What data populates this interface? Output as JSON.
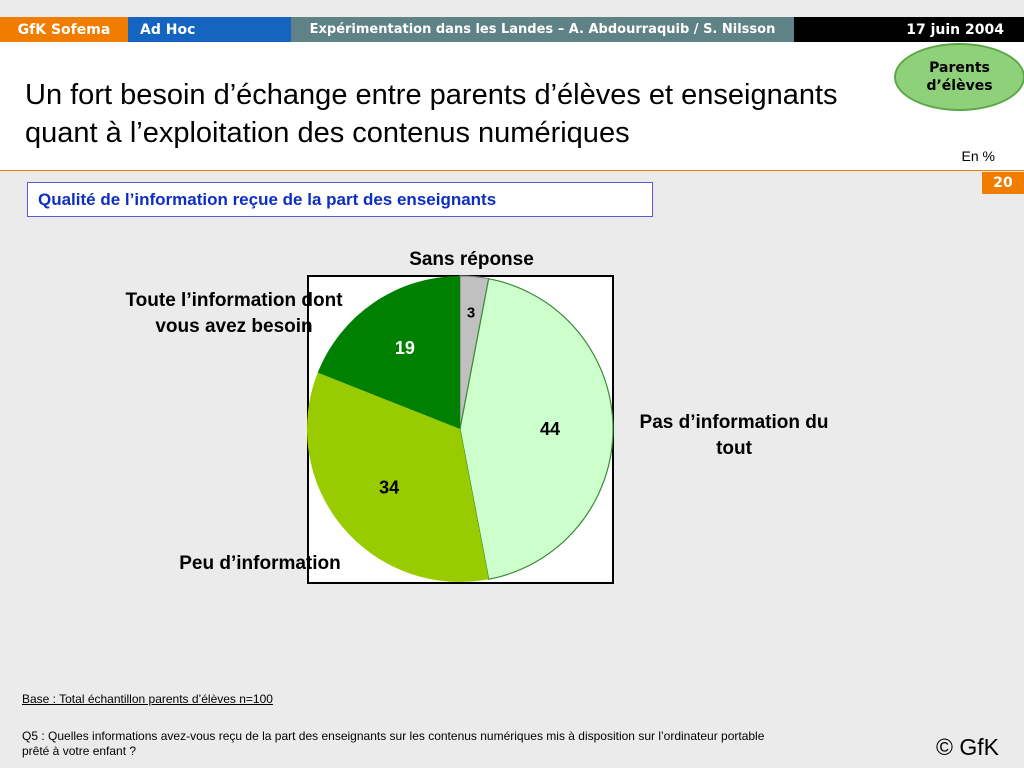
{
  "header": {
    "brand": "GfK Sofema",
    "study_type": "Ad Hoc",
    "project": "Expérimentation dans les Landes – A. Abdourraquib / S. Nilsson",
    "date": "17 juin 2004"
  },
  "badge": "Parents d’élèves",
  "title": "Un fort besoin d’échange entre parents d’élèves et enseignants quant à l’exploitation des contenus numériques",
  "unit": "En %",
  "page_number": "20",
  "question_box": "Qualité de l’information reçue de la part des enseignants",
  "colors": {
    "orange": "#f07d00",
    "blue": "#1565c0",
    "teal": "#5f8287",
    "sans_reponse": "#c0c0c0",
    "pas_info": "#ccffcc",
    "peu_info": "#99cc00",
    "toute_info": "#008000"
  },
  "chart_data": {
    "type": "pie",
    "title": "",
    "slices": [
      {
        "label": "Sans réponse",
        "value": 3,
        "color": "#c0c0c0"
      },
      {
        "label": "Pas d’information du tout",
        "value": 44,
        "color": "#ccffcc"
      },
      {
        "label": "Peu d’information",
        "value": 34,
        "color": "#99cc00"
      },
      {
        "label": "Toute l’information dont vous avez besoin",
        "value": 19,
        "color": "#008000"
      }
    ],
    "labels": {
      "sans_reponse": "Sans réponse",
      "pas_info": "Pas d’information du tout",
      "peu_info": "Peu d’information",
      "toute_info": "Toute l’information dont vous avez besoin"
    }
  },
  "footer": {
    "base": "Base : Total échantillon parents d’élèves n=100",
    "question": "Q5 : Quelles informations avez-vous reçu de la part des enseignants sur les contenus numériques mis à disposition sur l’ordinateur portable prêté à votre enfant ?",
    "copyright": "© GfK"
  }
}
